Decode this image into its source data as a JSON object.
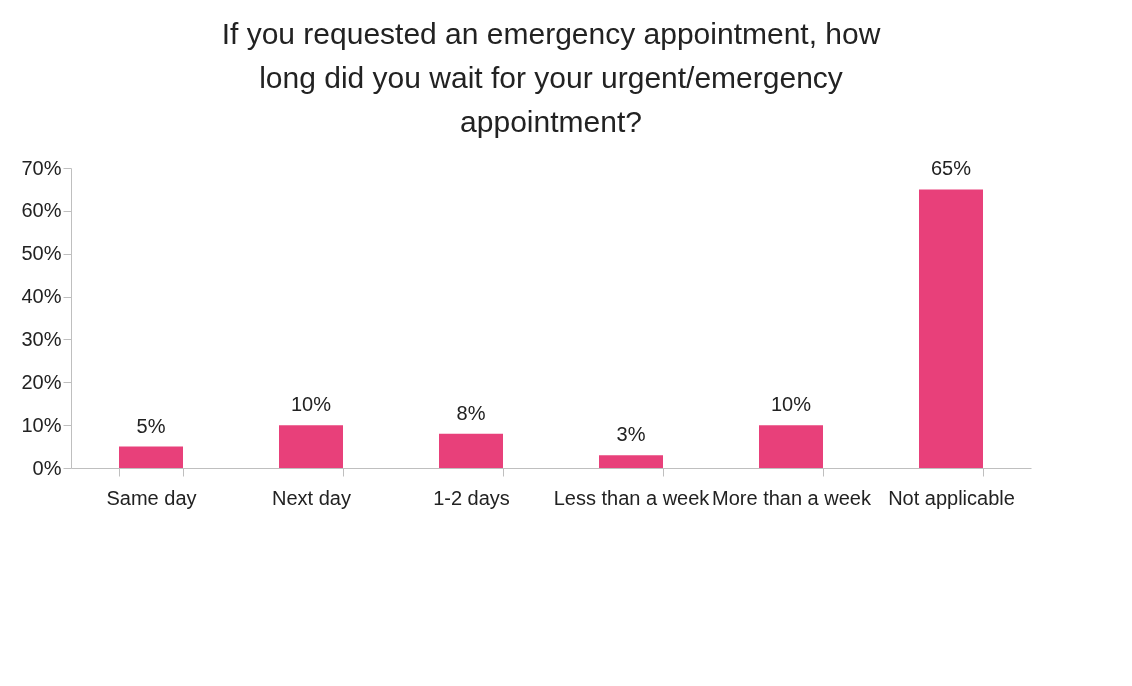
{
  "chart_data": {
    "type": "bar",
    "title": "If you requested an emergency appointment, how long did you wait for your urgent/emergency appointment?",
    "categories": [
      "Same day",
      "Next day",
      "1-2 days",
      "Less than a week",
      "More than a week",
      "Not applicable"
    ],
    "values": [
      5,
      10,
      8,
      3,
      10,
      65
    ],
    "color": "#e8407a",
    "ylim": [
      0,
      70
    ],
    "yticks": [
      {
        "value": 0,
        "label": "0%"
      },
      {
        "value": 10,
        "label": "10%"
      },
      {
        "value": 20,
        "label": "20%"
      },
      {
        "value": 30,
        "label": "30%"
      },
      {
        "value": 40,
        "label": "40%"
      },
      {
        "value": 50,
        "label": "50%"
      },
      {
        "value": 60,
        "label": "60%"
      },
      {
        "value": 70,
        "label": "70%"
      }
    ],
    "value_labels": [
      "5%",
      "10%",
      "8%",
      "3%",
      "10%",
      "65%"
    ],
    "grid": false
  }
}
